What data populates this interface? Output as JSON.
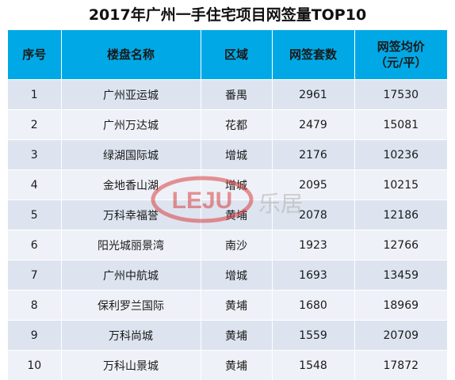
{
  "title": "2017年广州一手住宅项目网签量TOP10",
  "columns": {
    "rank": "序号",
    "name": "楼盘名称",
    "district": "区域",
    "count": "网签套数",
    "price_line1": "网签均价",
    "price_line2": "（元/平）"
  },
  "rows": [
    {
      "rank": "1",
      "name": "广州亚运城",
      "district": "番禺",
      "count": "2961",
      "price": "17530"
    },
    {
      "rank": "2",
      "name": "广州万达城",
      "district": "花都",
      "count": "2479",
      "price": "15081"
    },
    {
      "rank": "3",
      "name": "绿湖国际城",
      "district": "增城",
      "count": "2176",
      "price": "10236"
    },
    {
      "rank": "4",
      "name": "金地香山湖",
      "district": "增城",
      "count": "2095",
      "price": "10215"
    },
    {
      "rank": "5",
      "name": "万科幸福誉",
      "district": "黄埔",
      "count": "2078",
      "price": "12186"
    },
    {
      "rank": "6",
      "name": "阳光城丽景湾",
      "district": "南沙",
      "count": "1923",
      "price": "12766"
    },
    {
      "rank": "7",
      "name": "广州中航城",
      "district": "增城",
      "count": "1693",
      "price": "13459"
    },
    {
      "rank": "8",
      "name": "保利罗兰国际",
      "district": "黄埔",
      "count": "1680",
      "price": "18969"
    },
    {
      "rank": "9",
      "name": "万科尚城",
      "district": "黄埔",
      "count": "1559",
      "price": "20709"
    },
    {
      "rank": "10",
      "name": "万科山景城",
      "district": "黄埔",
      "count": "1548",
      "price": "17872"
    }
  ],
  "watermark": {
    "logo_text": "LEJU",
    "brand_text": "乐居",
    "color": "#d94040"
  }
}
